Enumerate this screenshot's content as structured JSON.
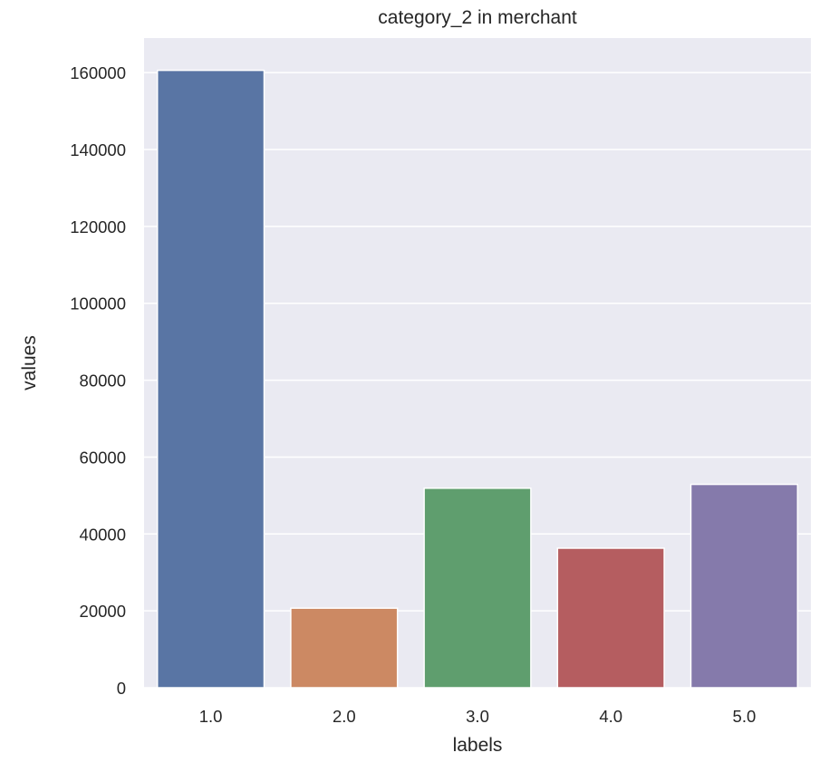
{
  "chart_data": {
    "type": "bar",
    "title": "category_2 in merchant",
    "xlabel": "labels",
    "ylabel": "values",
    "categories": [
      "1.0",
      "2.0",
      "3.0",
      "4.0",
      "5.0"
    ],
    "values": [
      160600,
      20700,
      51900,
      36300,
      52900
    ],
    "colors": [
      "#5975a4",
      "#cc8963",
      "#5f9e6e",
      "#b55d60",
      "#857aab"
    ],
    "ylim": [
      0,
      169000
    ],
    "yticks": [
      0,
      20000,
      40000,
      60000,
      80000,
      100000,
      120000,
      140000,
      160000
    ],
    "ytick_labels": [
      "0",
      "20000",
      "40000",
      "60000",
      "80000",
      "100000",
      "120000",
      "140000",
      "160000"
    ],
    "grid": true,
    "background_color": "#eaeaf2",
    "grid_color": "#ffffff"
  }
}
